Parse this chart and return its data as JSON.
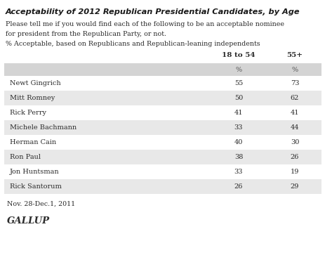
{
  "title": "Acceptability of 2012 Republican Presidential Candidates, by Age",
  "subtitle_line1": "Please tell me if you would find each of the following to be an acceptable nominee",
  "subtitle_line2": "for president from the Republican Party, or not.",
  "subtitle_line3": "% Acceptable, based on Republicans and Republican-leaning independents",
  "col1_header": "18 to 54",
  "col2_header": "55+",
  "col_sub": "%",
  "candidates": [
    "Newt Gingrich",
    "Mitt Romney",
    "Rick Perry",
    "Michele Bachmann",
    "Herman Cain",
    "Ron Paul",
    "Jon Huntsman",
    "Rick Santorum"
  ],
  "col1_values": [
    55,
    50,
    41,
    33,
    40,
    38,
    33,
    26
  ],
  "col2_values": [
    73,
    62,
    41,
    44,
    30,
    26,
    19,
    29
  ],
  "footer": "Nov. 28-Dec.1, 2011",
  "source": "GALLUP",
  "bg_color": "#ffffff",
  "shaded_row_color": "#e8e8e8",
  "header_shaded_color": "#d4d4d4",
  "text_color": "#2b2b2b",
  "title_color": "#1a1a1a"
}
